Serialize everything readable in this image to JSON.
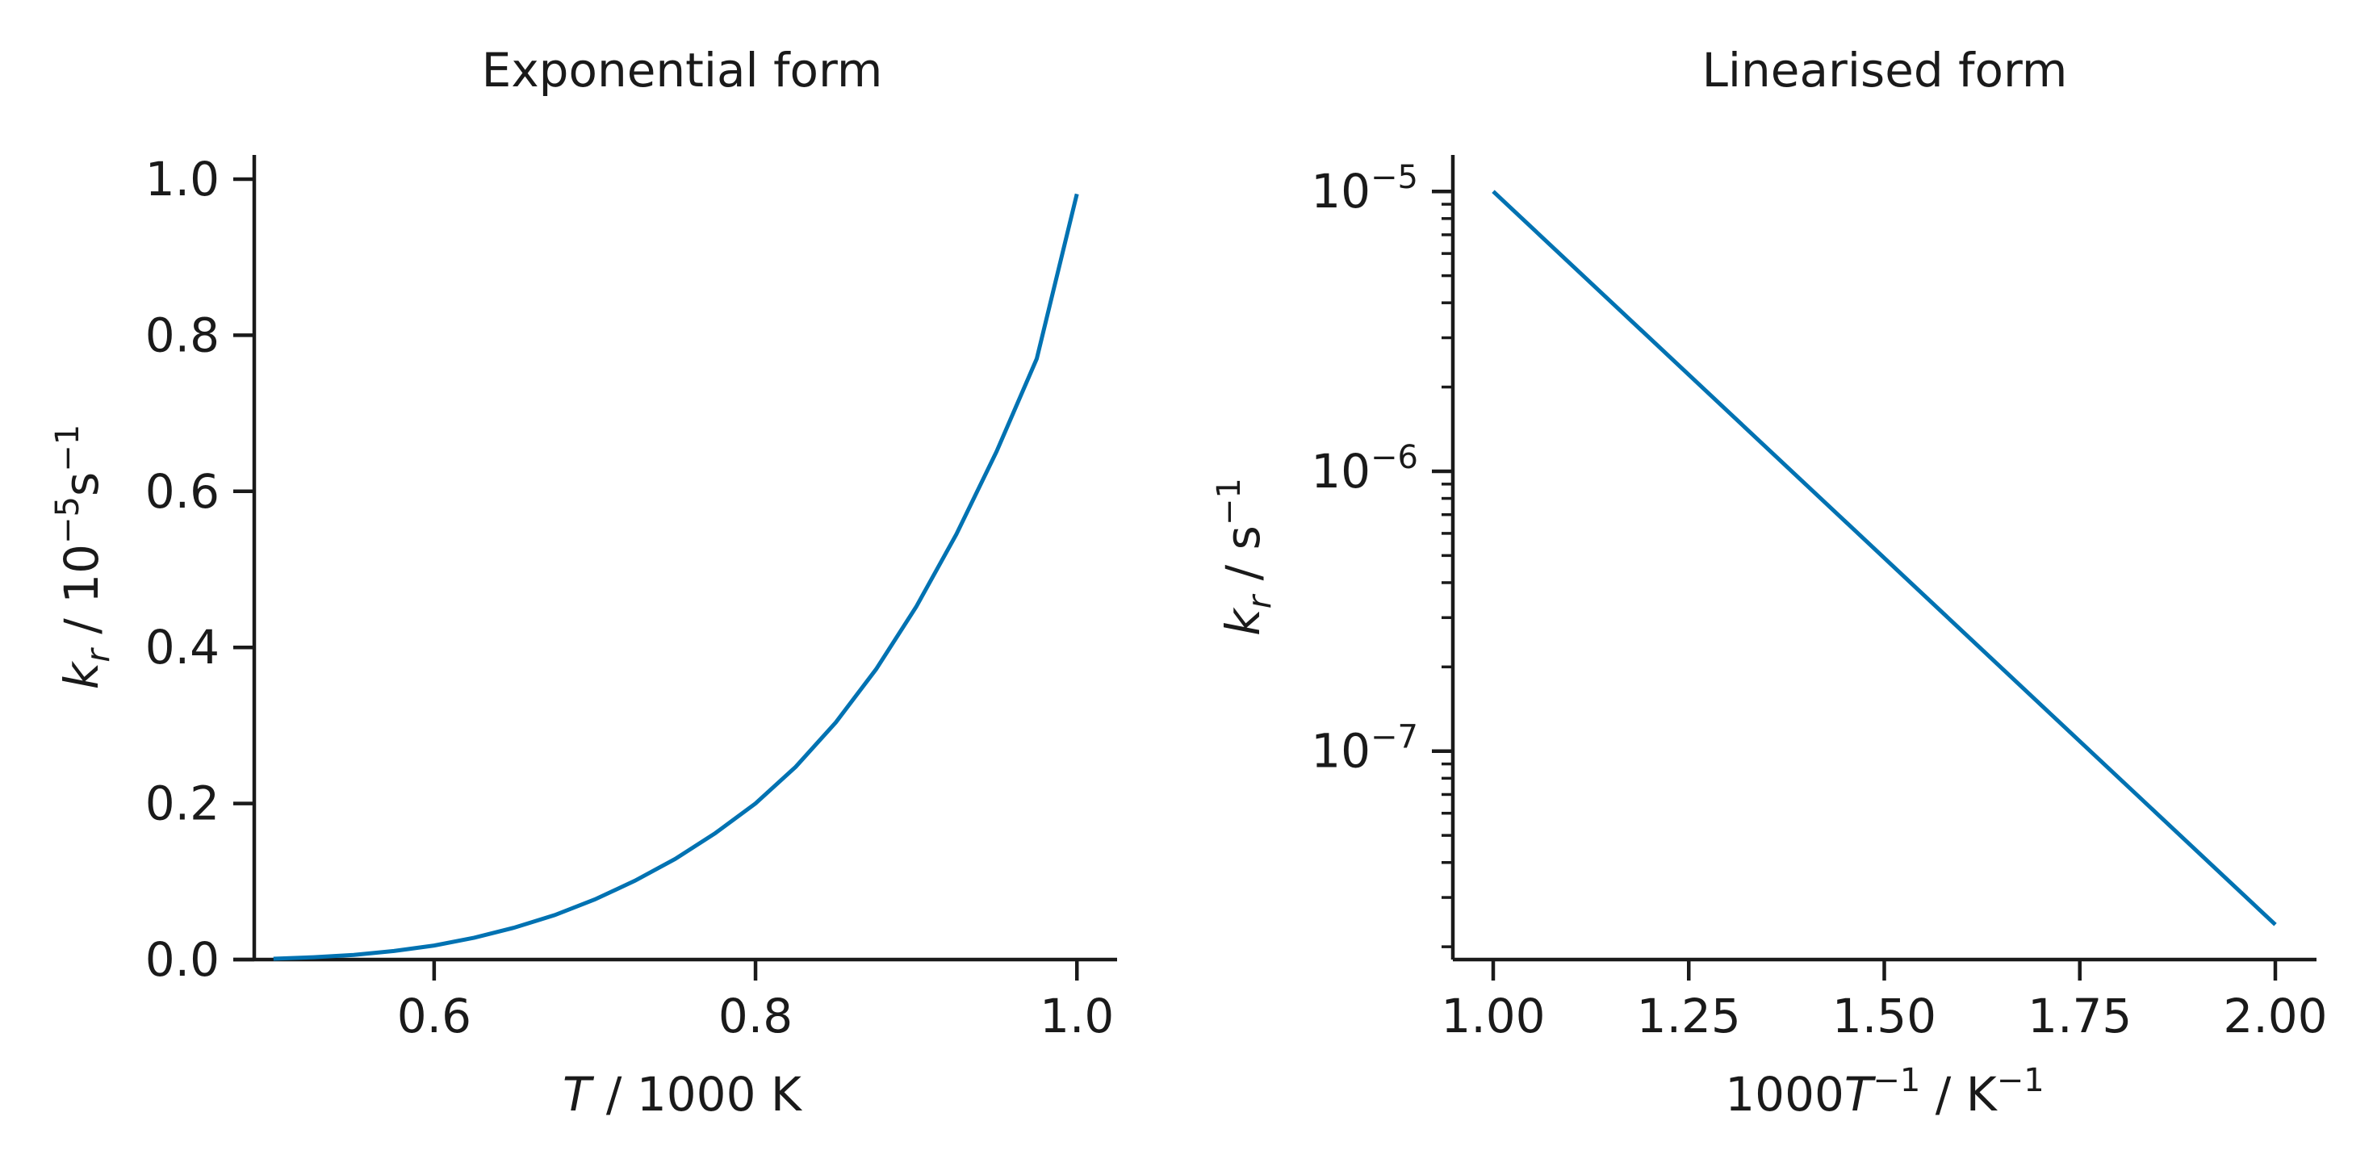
{
  "chart_data": [
    {
      "type": "line",
      "title": "Exponential form",
      "xlabel": {
        "italic": "T",
        "rest": " / 1000 K"
      },
      "ylabel": {
        "italic": "k",
        "sub": "r",
        "pre": " / 10",
        "sup": "−5",
        "post": "s",
        "post_sup": "−1"
      },
      "xlim": [
        0.475,
        1.025
      ],
      "ylim": [
        0.0,
        1.0
      ],
      "xticks": [
        0.6,
        0.8,
        1.0
      ],
      "xtick_labels": [
        "0.6",
        "0.8",
        "1.0"
      ],
      "yticks": [
        0.0,
        0.2,
        0.4,
        0.6,
        0.8,
        1.0
      ],
      "ytick_labels": [
        "0.0",
        "0.2",
        "0.4",
        "0.6",
        "0.8",
        "1.0"
      ],
      "series": [
        {
          "color": "#0072b2",
          "x": [
            0.5,
            0.525,
            0.55,
            0.575,
            0.6,
            0.625,
            0.65,
            0.675,
            0.7,
            0.725,
            0.75,
            0.775,
            0.8,
            0.825,
            0.85,
            0.875,
            0.9,
            0.925,
            0.95,
            0.975,
            1.0
          ],
          "y": [
            0.001,
            0.003,
            0.006,
            0.011,
            0.018,
            0.028,
            0.041,
            0.057,
            0.077,
            0.101,
            0.129,
            0.162,
            0.2,
            0.247,
            0.304,
            0.372,
            0.452,
            0.545,
            0.651,
            0.77,
            0.981
          ]
        }
      ],
      "grid": false,
      "legend": "none"
    },
    {
      "type": "line",
      "title": "Linearised form",
      "xlabel": {
        "pre": "1000",
        "italic": "T",
        "sup": "−1",
        "rest": " / K",
        "rest_sup": "−1"
      },
      "ylabel": {
        "italic": "k",
        "sub": "r",
        "pre": " / s",
        "sup": "−1"
      },
      "xlim": [
        0.948,
        2.052
      ],
      "ylim": [
        1.8e-08,
        1.35e-05
      ],
      "yscale": "log",
      "xticks": [
        1.0,
        1.25,
        1.5,
        1.75,
        2.0
      ],
      "xtick_labels": [
        "1.00",
        "1.25",
        "1.50",
        "1.75",
        "2.00"
      ],
      "yticks": [
        1e-07,
        1e-06,
        1e-05
      ],
      "ytick_labels": [
        {
          "base": "10",
          "exp": "−7"
        },
        {
          "base": "10",
          "exp": "−6"
        },
        {
          "base": "10",
          "exp": "−5"
        }
      ],
      "series": [
        {
          "color": "#0072b2",
          "x": [
            1.0,
            2.0
          ],
          "y": [
            1e-05,
            2.4e-08
          ]
        }
      ],
      "grid": false,
      "legend": "none"
    }
  ]
}
